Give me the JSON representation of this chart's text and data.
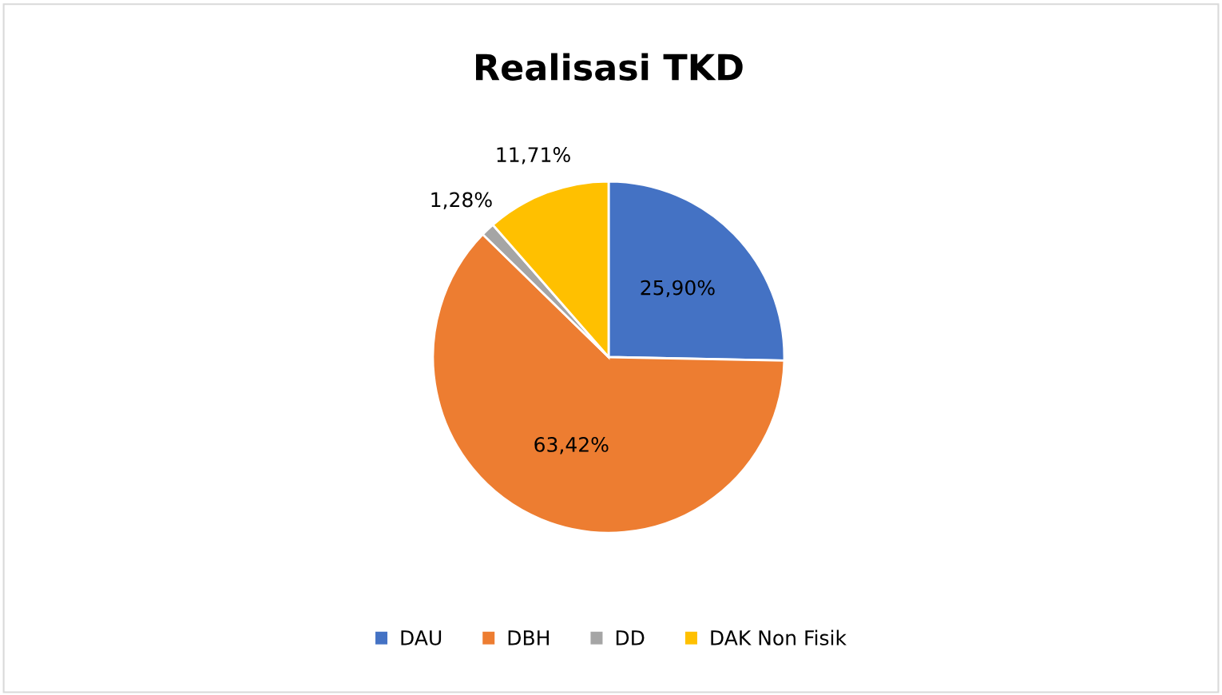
{
  "chart_data": {
    "type": "pie",
    "title": "Realisasi TKD",
    "categories": [
      "DAU",
      "DBH",
      "DD",
      "DAK Non Fisik"
    ],
    "values": [
      25.9,
      63.42,
      1.28,
      11.71
    ],
    "value_labels": [
      "25,90%",
      "63,42%",
      "1,28%",
      "11,71%"
    ],
    "colors": [
      "#4472c4",
      "#ed7d31",
      "#a5a5a5",
      "#ffc000"
    ],
    "legend": "bottom"
  }
}
